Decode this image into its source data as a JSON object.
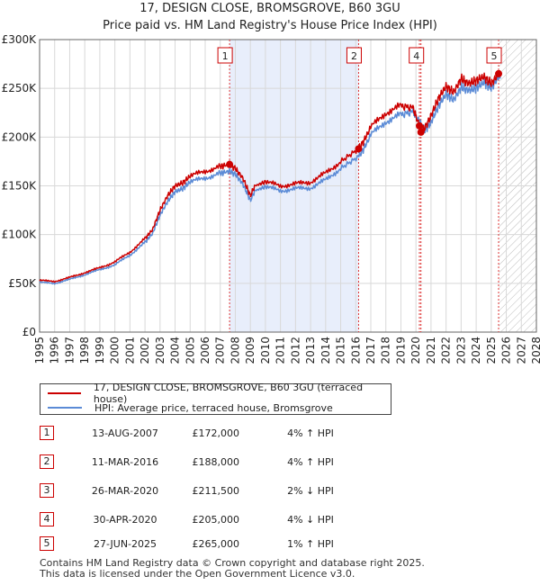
{
  "chart_data": {
    "type": "line",
    "title": "17, DESIGN CLOSE, BROMSGROVE, B60 3GU",
    "subtitle": "Price paid vs. HM Land Registry's House Price Index (HPI)",
    "xlim": [
      1995,
      2028
    ],
    "ylim": [
      0,
      300000
    ],
    "y_ticks": [
      0,
      50000,
      100000,
      150000,
      200000,
      250000,
      300000
    ],
    "y_tick_labels": [
      "£0",
      "£50K",
      "£100K",
      "£150K",
      "£200K",
      "£250K",
      "£300K"
    ],
    "x_ticks": [
      1995,
      1996,
      1997,
      1998,
      1999,
      2000,
      2001,
      2002,
      2003,
      2004,
      2005,
      2006,
      2007,
      2008,
      2009,
      2010,
      2011,
      2012,
      2013,
      2014,
      2015,
      2016,
      2017,
      2018,
      2019,
      2020,
      2021,
      2022,
      2023,
      2024,
      2025,
      2026,
      2027,
      2028
    ],
    "x_tick_labels": [
      "1995",
      "1996",
      "1997",
      "1998",
      "1999",
      "2000",
      "2001",
      "2002",
      "2003",
      "2004",
      "2005",
      "2006",
      "2007",
      "2008",
      "2009",
      "2010",
      "2011",
      "2012",
      "2013",
      "2014",
      "2015",
      "2016",
      "2017",
      "2018",
      "2019",
      "2020",
      "2021",
      "2022",
      "2023",
      "2024",
      "2025",
      "2026",
      "2027",
      "2028"
    ],
    "grid": true,
    "highlight_span": [
      2007.62,
      2016.19
    ],
    "hatch_from": 2025.49,
    "series": [
      {
        "name": "17, DESIGN CLOSE, BROMSGROVE, B60 3GU (terraced house)",
        "color": "#cc0000",
        "x": [
          1995,
          1996,
          1997,
          1998,
          1999,
          2000,
          2001,
          2002,
          2002.5,
          2003,
          2003.5,
          2004,
          2004.5,
          2005,
          2006,
          2007,
          2007.62,
          2008,
          2008.5,
          2009,
          2009.3,
          2010,
          2011,
          2012,
          2013,
          2014,
          2015,
          2016.19,
          2016.5,
          2017,
          2018,
          2019,
          2019.8,
          2020.23,
          2020.33,
          2020.6,
          2021,
          2021.5,
          2022,
          2022.5,
          2023,
          2023.5,
          2024,
          2024.5,
          2025,
          2025.49,
          2025.6
        ],
        "y": [
          53000,
          52000,
          56000,
          61000,
          66000,
          72000,
          82000,
          96000,
          105000,
          125000,
          140000,
          150000,
          153000,
          160000,
          165000,
          170000,
          172000,
          168000,
          158000,
          140000,
          150000,
          154000,
          150000,
          152000,
          154000,
          163000,
          175000,
          188000,
          195000,
          210000,
          225000,
          232000,
          230000,
          211500,
          205000,
          210000,
          222000,
          240000,
          252000,
          246000,
          260000,
          255000,
          258000,
          262000,
          255000,
          265000,
          262000
        ]
      },
      {
        "name": "HPI: Average price, terraced house, Bromsgrove",
        "color": "#5b8bd6",
        "x": [
          1995,
          1996,
          1997,
          1998,
          1999,
          2000,
          2001,
          2002,
          2002.5,
          2003,
          2003.5,
          2004,
          2004.5,
          2005,
          2006,
          2007,
          2007.62,
          2008,
          2008.5,
          2009,
          2009.3,
          2010,
          2011,
          2012,
          2013,
          2014,
          2015,
          2016.19,
          2016.5,
          2017,
          2018,
          2019,
          2019.8,
          2020.23,
          2020.33,
          2020.6,
          2021,
          2021.5,
          2022,
          2022.5,
          2023,
          2023.5,
          2024,
          2024.5,
          2025,
          2025.49,
          2025.6
        ],
        "y": [
          51000,
          50000,
          54000,
          59000,
          64000,
          69000,
          79000,
          92000,
          101000,
          120000,
          134000,
          144000,
          147000,
          154000,
          158000,
          163000,
          165000,
          162000,
          152000,
          135000,
          145000,
          149000,
          145000,
          147000,
          148000,
          156000,
          168000,
          180000,
          187000,
          202000,
          216000,
          223000,
          226000,
          216000,
          213000,
          207000,
          215000,
          232000,
          244000,
          238000,
          251000,
          248000,
          250000,
          256000,
          250000,
          262000,
          260000
        ]
      }
    ],
    "sales": [
      {
        "label": "1",
        "x": 2007.62,
        "y": 172000
      },
      {
        "label": "2",
        "x": 2016.19,
        "y": 188000
      },
      {
        "label": "3",
        "x": 2020.23,
        "y": 211500
      },
      {
        "label": "4",
        "x": 2020.33,
        "y": 205000
      },
      {
        "label": "5",
        "x": 2025.49,
        "y": 265000
      }
    ],
    "top_markers": [
      "1",
      "2",
      "4",
      "5"
    ]
  },
  "legend": {
    "property": "17, DESIGN CLOSE, BROMSGROVE, B60 3GU (terraced house)",
    "hpi": "HPI: Average price, terraced house, Bromsgrove"
  },
  "table": [
    {
      "num": "1",
      "date": "13-AUG-2007",
      "price": "£172,000",
      "hpi": "4% ↑ HPI"
    },
    {
      "num": "2",
      "date": "11-MAR-2016",
      "price": "£188,000",
      "hpi": "4% ↑ HPI"
    },
    {
      "num": "3",
      "date": "26-MAR-2020",
      "price": "£211,500",
      "hpi": "2% ↓ HPI"
    },
    {
      "num": "4",
      "date": "30-APR-2020",
      "price": "£205,000",
      "hpi": "4% ↓ HPI"
    },
    {
      "num": "5",
      "date": "27-JUN-2025",
      "price": "£265,000",
      "hpi": "1% ↑ HPI"
    }
  ],
  "footer": {
    "line1": "Contains HM Land Registry data © Crown copyright and database right 2025.",
    "line2": "This data is licensed under the Open Government Licence v3.0."
  }
}
